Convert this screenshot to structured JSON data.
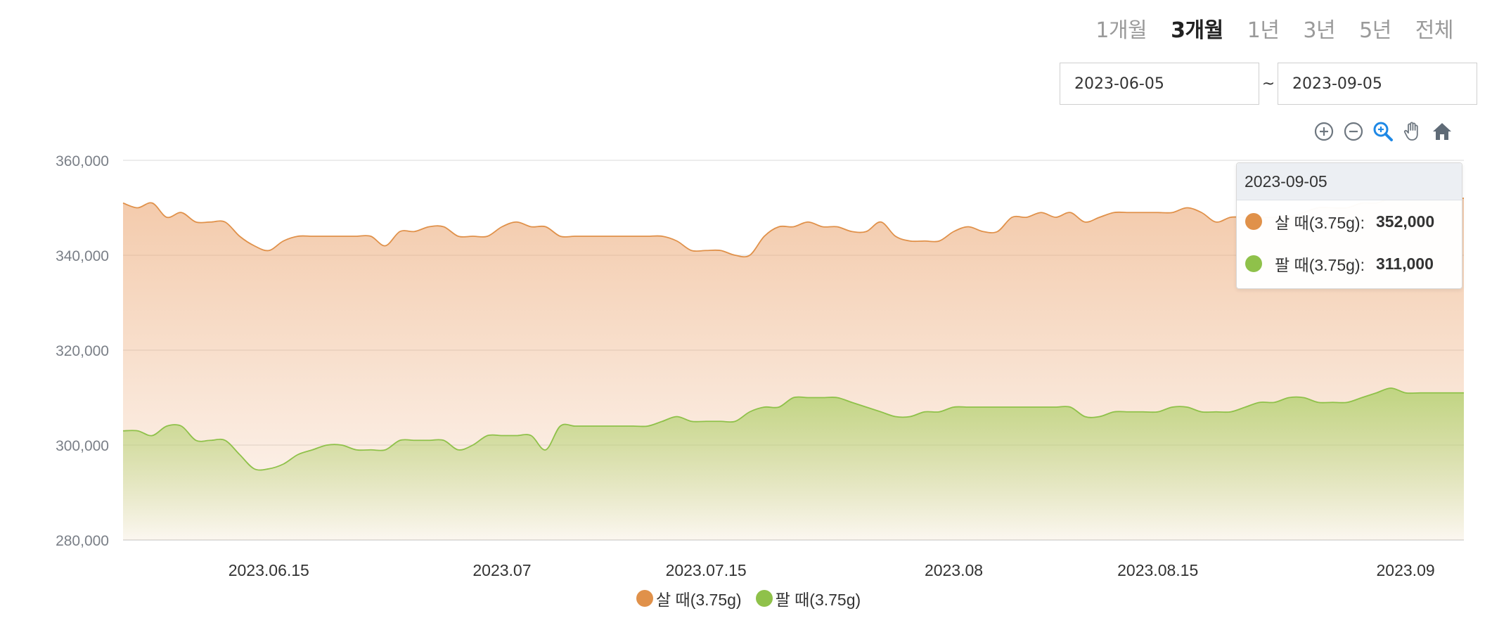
{
  "periods": {
    "tabs": [
      {
        "label": "1개월",
        "active": false
      },
      {
        "label": "3개월",
        "active": true
      },
      {
        "label": "1년",
        "active": false
      },
      {
        "label": "3년",
        "active": false
      },
      {
        "label": "5년",
        "active": false
      },
      {
        "label": "전체",
        "active": false
      }
    ]
  },
  "date_range": {
    "start": "2023-06-05",
    "separator": "~",
    "end": "2023-09-05"
  },
  "toolbar": {
    "icons": [
      "zoom-in-icon",
      "zoom-out-icon",
      "selection-zoom-icon",
      "pan-hand-icon",
      "home-reset-icon"
    ],
    "active": "selection-zoom-icon"
  },
  "tooltip": {
    "date": "2023-09-05",
    "rows": [
      {
        "label": "살 때(3.75g):",
        "value": "352,000"
      },
      {
        "label": "팔 때(3.75g):",
        "value": "311,000"
      }
    ]
  },
  "colors": {
    "buy": "#e0914a",
    "sell": "#8fc14a"
  },
  "chart_data": {
    "type": "area",
    "ylim": [
      280000,
      360000
    ],
    "yticks": [
      "360,000",
      "340,000",
      "320,000",
      "300,000",
      "280,000"
    ],
    "xticks": [
      "2023.06.15",
      "2023.07",
      "2023.07.15",
      "2023.08",
      "2023.08.15",
      "2023.09"
    ],
    "grid": true,
    "legend_position": "bottom",
    "series": [
      {
        "name": "살 때(3.75g)",
        "values": [
          [
            "2023-06-05",
            351000
          ],
          [
            "2023-06-06",
            350000
          ],
          [
            "2023-06-07",
            351000
          ],
          [
            "2023-06-08",
            348000
          ],
          [
            "2023-06-09",
            349000
          ],
          [
            "2023-06-10",
            347000
          ],
          [
            "2023-06-11",
            347000
          ],
          [
            "2023-06-12",
            347000
          ],
          [
            "2023-06-13",
            344000
          ],
          [
            "2023-06-14",
            342000
          ],
          [
            "2023-06-15",
            341000
          ],
          [
            "2023-06-16",
            343000
          ],
          [
            "2023-06-17",
            344000
          ],
          [
            "2023-06-18",
            344000
          ],
          [
            "2023-06-19",
            344000
          ],
          [
            "2023-06-20",
            344000
          ],
          [
            "2023-06-21",
            344000
          ],
          [
            "2023-06-22",
            344000
          ],
          [
            "2023-06-23",
            342000
          ],
          [
            "2023-06-24",
            345000
          ],
          [
            "2023-06-25",
            345000
          ],
          [
            "2023-06-26",
            346000
          ],
          [
            "2023-06-27",
            346000
          ],
          [
            "2023-06-28",
            344000
          ],
          [
            "2023-06-29",
            344000
          ],
          [
            "2023-06-30",
            344000
          ],
          [
            "2023-07-01",
            346000
          ],
          [
            "2023-07-02",
            347000
          ],
          [
            "2023-07-03",
            346000
          ],
          [
            "2023-07-04",
            346000
          ],
          [
            "2023-07-05",
            344000
          ],
          [
            "2023-07-06",
            344000
          ],
          [
            "2023-07-07",
            344000
          ],
          [
            "2023-07-08",
            344000
          ],
          [
            "2023-07-09",
            344000
          ],
          [
            "2023-07-10",
            344000
          ],
          [
            "2023-07-11",
            344000
          ],
          [
            "2023-07-12",
            344000
          ],
          [
            "2023-07-13",
            343000
          ],
          [
            "2023-07-14",
            341000
          ],
          [
            "2023-07-15",
            341000
          ],
          [
            "2023-07-16",
            341000
          ],
          [
            "2023-07-17",
            340000
          ],
          [
            "2023-07-18",
            340000
          ],
          [
            "2023-07-19",
            344000
          ],
          [
            "2023-07-20",
            346000
          ],
          [
            "2023-07-21",
            346000
          ],
          [
            "2023-07-22",
            347000
          ],
          [
            "2023-07-23",
            346000
          ],
          [
            "2023-07-24",
            346000
          ],
          [
            "2023-07-25",
            345000
          ],
          [
            "2023-07-26",
            345000
          ],
          [
            "2023-07-27",
            347000
          ],
          [
            "2023-07-28",
            344000
          ],
          [
            "2023-07-29",
            343000
          ],
          [
            "2023-07-30",
            343000
          ],
          [
            "2023-07-31",
            343000
          ],
          [
            "2023-08-01",
            345000
          ],
          [
            "2023-08-02",
            346000
          ],
          [
            "2023-08-03",
            345000
          ],
          [
            "2023-08-04",
            345000
          ],
          [
            "2023-08-05",
            348000
          ],
          [
            "2023-08-06",
            348000
          ],
          [
            "2023-08-07",
            349000
          ],
          [
            "2023-08-08",
            348000
          ],
          [
            "2023-08-09",
            349000
          ],
          [
            "2023-08-10",
            347000
          ],
          [
            "2023-08-11",
            348000
          ],
          [
            "2023-08-12",
            349000
          ],
          [
            "2023-08-13",
            349000
          ],
          [
            "2023-08-14",
            349000
          ],
          [
            "2023-08-15",
            349000
          ],
          [
            "2023-08-16",
            349000
          ],
          [
            "2023-08-17",
            350000
          ],
          [
            "2023-08-18",
            349000
          ],
          [
            "2023-08-19",
            347000
          ],
          [
            "2023-08-20",
            348000
          ],
          [
            "2023-08-21",
            348000
          ],
          [
            "2023-08-22",
            348000
          ],
          [
            "2023-08-23",
            348000
          ],
          [
            "2023-08-24",
            348000
          ],
          [
            "2023-08-25",
            349000
          ],
          [
            "2023-08-26",
            350000
          ],
          [
            "2023-08-27",
            350000
          ],
          [
            "2023-08-28",
            350000
          ],
          [
            "2023-08-29",
            351000
          ],
          [
            "2023-08-30",
            351000
          ],
          [
            "2023-08-31",
            352000
          ],
          [
            "2023-09-01",
            352000
          ],
          [
            "2023-09-02",
            352000
          ],
          [
            "2023-09-03",
            352000
          ],
          [
            "2023-09-04",
            352000
          ],
          [
            "2023-09-05",
            352000
          ]
        ]
      },
      {
        "name": "팔 때(3.75g)",
        "values": [
          [
            "2023-06-05",
            303000
          ],
          [
            "2023-06-06",
            303000
          ],
          [
            "2023-06-07",
            302000
          ],
          [
            "2023-06-08",
            304000
          ],
          [
            "2023-06-09",
            304000
          ],
          [
            "2023-06-10",
            301000
          ],
          [
            "2023-06-11",
            301000
          ],
          [
            "2023-06-12",
            301000
          ],
          [
            "2023-06-13",
            298000
          ],
          [
            "2023-06-14",
            295000
          ],
          [
            "2023-06-15",
            295000
          ],
          [
            "2023-06-16",
            296000
          ],
          [
            "2023-06-17",
            298000
          ],
          [
            "2023-06-18",
            299000
          ],
          [
            "2023-06-19",
            300000
          ],
          [
            "2023-06-20",
            300000
          ],
          [
            "2023-06-21",
            299000
          ],
          [
            "2023-06-22",
            299000
          ],
          [
            "2023-06-23",
            299000
          ],
          [
            "2023-06-24",
            301000
          ],
          [
            "2023-06-25",
            301000
          ],
          [
            "2023-06-26",
            301000
          ],
          [
            "2023-06-27",
            301000
          ],
          [
            "2023-06-28",
            299000
          ],
          [
            "2023-06-29",
            300000
          ],
          [
            "2023-06-30",
            302000
          ],
          [
            "2023-07-01",
            302000
          ],
          [
            "2023-07-02",
            302000
          ],
          [
            "2023-07-03",
            302000
          ],
          [
            "2023-07-04",
            299000
          ],
          [
            "2023-07-05",
            304000
          ],
          [
            "2023-07-06",
            304000
          ],
          [
            "2023-07-07",
            304000
          ],
          [
            "2023-07-08",
            304000
          ],
          [
            "2023-07-09",
            304000
          ],
          [
            "2023-07-10",
            304000
          ],
          [
            "2023-07-11",
            304000
          ],
          [
            "2023-07-12",
            305000
          ],
          [
            "2023-07-13",
            306000
          ],
          [
            "2023-07-14",
            305000
          ],
          [
            "2023-07-15",
            305000
          ],
          [
            "2023-07-16",
            305000
          ],
          [
            "2023-07-17",
            305000
          ],
          [
            "2023-07-18",
            307000
          ],
          [
            "2023-07-19",
            308000
          ],
          [
            "2023-07-20",
            308000
          ],
          [
            "2023-07-21",
            310000
          ],
          [
            "2023-07-22",
            310000
          ],
          [
            "2023-07-23",
            310000
          ],
          [
            "2023-07-24",
            310000
          ],
          [
            "2023-07-25",
            309000
          ],
          [
            "2023-07-26",
            308000
          ],
          [
            "2023-07-27",
            307000
          ],
          [
            "2023-07-28",
            306000
          ],
          [
            "2023-07-29",
            306000
          ],
          [
            "2023-07-30",
            307000
          ],
          [
            "2023-07-31",
            307000
          ],
          [
            "2023-08-01",
            308000
          ],
          [
            "2023-08-02",
            308000
          ],
          [
            "2023-08-03",
            308000
          ],
          [
            "2023-08-04",
            308000
          ],
          [
            "2023-08-05",
            308000
          ],
          [
            "2023-08-06",
            308000
          ],
          [
            "2023-08-07",
            308000
          ],
          [
            "2023-08-08",
            308000
          ],
          [
            "2023-08-09",
            308000
          ],
          [
            "2023-08-10",
            306000
          ],
          [
            "2023-08-11",
            306000
          ],
          [
            "2023-08-12",
            307000
          ],
          [
            "2023-08-13",
            307000
          ],
          [
            "2023-08-14",
            307000
          ],
          [
            "2023-08-15",
            307000
          ],
          [
            "2023-08-16",
            308000
          ],
          [
            "2023-08-17",
            308000
          ],
          [
            "2023-08-18",
            307000
          ],
          [
            "2023-08-19",
            307000
          ],
          [
            "2023-08-20",
            307000
          ],
          [
            "2023-08-21",
            308000
          ],
          [
            "2023-08-22",
            309000
          ],
          [
            "2023-08-23",
            309000
          ],
          [
            "2023-08-24",
            310000
          ],
          [
            "2023-08-25",
            310000
          ],
          [
            "2023-08-26",
            309000
          ],
          [
            "2023-08-27",
            309000
          ],
          [
            "2023-08-28",
            309000
          ],
          [
            "2023-08-29",
            310000
          ],
          [
            "2023-08-30",
            311000
          ],
          [
            "2023-08-31",
            312000
          ],
          [
            "2023-09-01",
            311000
          ],
          [
            "2023-09-02",
            311000
          ],
          [
            "2023-09-03",
            311000
          ],
          [
            "2023-09-04",
            311000
          ],
          [
            "2023-09-05",
            311000
          ]
        ]
      }
    ]
  }
}
